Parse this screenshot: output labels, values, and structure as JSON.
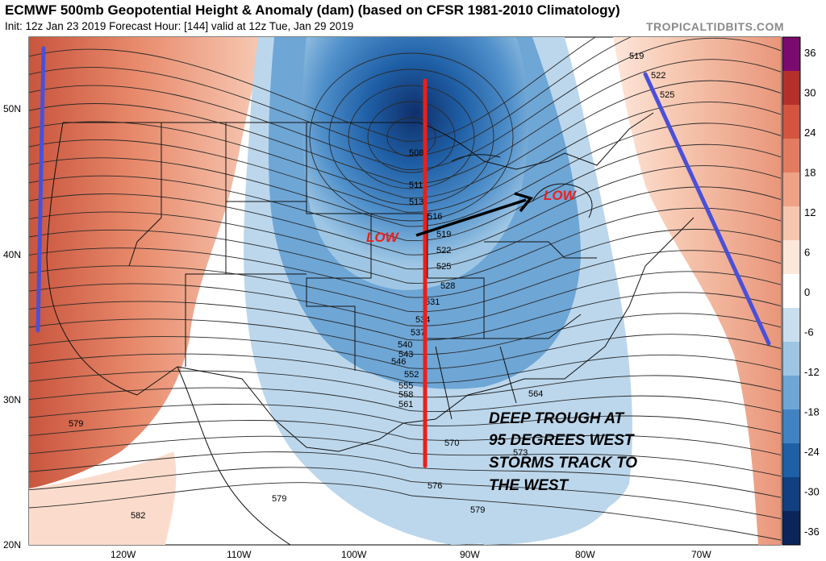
{
  "header": {
    "title": "ECMWF 500mb Geopotential Height & Anomaly (dam) (based on CFSR 1981-2010 Climatology)",
    "subtitle": "Init: 12z Jan 23 2019   Forecast Hour: [144]   valid at 12z Tue, Jan 29 2019",
    "brand": "TROPICALTIDBITS.COM"
  },
  "axes": {
    "latitudes": [
      "50N",
      "40N",
      "30N",
      "20N"
    ],
    "longitudes": [
      "120W",
      "110W",
      "100W",
      "90W",
      "80W",
      "70W"
    ]
  },
  "colorbar": {
    "ticks": [
      "36",
      "30",
      "24",
      "18",
      "12",
      "6",
      "0",
      "-6",
      "-12",
      "-18",
      "-24",
      "-30",
      "-36"
    ],
    "colors": [
      "#7b0a6e",
      "#b5302a",
      "#d4553f",
      "#e37b60",
      "#efa285",
      "#f6c6af",
      "#fde6da",
      "#ffffff",
      "#c9dff0",
      "#9ec6e4",
      "#6ea6d6",
      "#4282c2",
      "#1f5fa6",
      "#113f7f",
      "#0b2559"
    ]
  },
  "contour_labels": [
    "519",
    "522",
    "525",
    "508",
    "511",
    "513",
    "516",
    "519",
    "522",
    "525",
    "528",
    "531",
    "534",
    "537",
    "540",
    "543",
    "546",
    "552",
    "555",
    "558",
    "561",
    "564",
    "570",
    "573",
    "576",
    "579",
    "579",
    "579",
    "582"
  ],
  "annotations": {
    "low_west": "LOW",
    "low_east": "LOW",
    "note_lines": [
      "DEEP TROUGH AT",
      "95 DEGREES WEST",
      "STORMS TRACK TO",
      "THE WEST"
    ]
  },
  "colors": {
    "trough_line": "#e8201c",
    "ridge_line": "#4a50d8",
    "arrow": "#000000"
  }
}
